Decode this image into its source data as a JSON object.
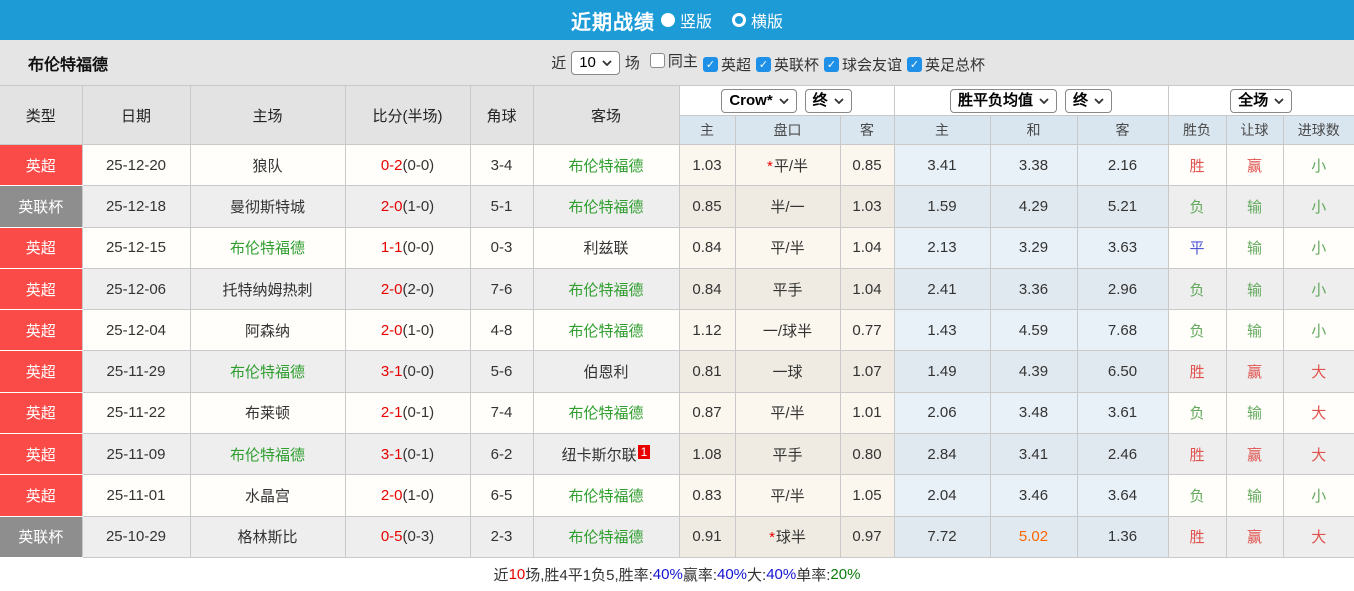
{
  "colors": {
    "accent_blue": "#1d9bd7",
    "checkbox_blue": "#1e90e8",
    "league_red": "#fb4b48",
    "league_gray": "#8e8e8e",
    "score_red": "#e80000",
    "team_green": "#2f9e2f",
    "win_red": "#e0524e",
    "lose_green": "#64a95e",
    "draw_blue": "#5156d6",
    "highlight_orange": "#ff6600"
  },
  "topbar": {
    "title": "近期战绩",
    "radios": [
      {
        "label": "竖版",
        "selected": true
      },
      {
        "label": "横版",
        "selected": false
      }
    ]
  },
  "filterbar": {
    "team": "布伦特福德",
    "near_label": "近",
    "matches_select": "10",
    "matches_label": "场",
    "checkboxes": [
      {
        "label": "同主",
        "checked": false
      },
      {
        "label": "英超",
        "checked": true
      },
      {
        "label": "英联杯",
        "checked": true
      },
      {
        "label": "球会友谊",
        "checked": true
      },
      {
        "label": "英足总杯",
        "checked": true
      }
    ]
  },
  "table": {
    "left_headers": [
      "类型",
      "日期",
      "主场",
      "比分(半场)",
      "角球",
      "客场"
    ],
    "group1": {
      "select1": "Crow*",
      "select2": "终",
      "cols": [
        "主",
        "盘口",
        "客"
      ]
    },
    "group2": {
      "select1": "胜平负均值",
      "select2": "终",
      "cols": [
        "主",
        "和",
        "客"
      ]
    },
    "group3": {
      "select": "全场",
      "cols": [
        "胜负",
        "让球",
        "进球数"
      ]
    },
    "rows": [
      {
        "league": "英超",
        "league_type": "red",
        "date": "25-12-20",
        "home": "狼队",
        "home_hl": false,
        "score": "0-2",
        "half": "(0-0)",
        "corners": "3-4",
        "away": "布伦特福德",
        "away_hl": true,
        "away_badge": "",
        "odds_home": "1.03",
        "handicap": "平/半",
        "handicap_star": true,
        "odds_away": "0.85",
        "avg_home": "3.41",
        "avg_draw": "3.38",
        "avg_away": "2.16",
        "avg_draw_hl": false,
        "res_wdl": "胜",
        "res_wdl_cls": "red",
        "res_handicap": "赢",
        "res_handicap_cls": "red",
        "res_goals": "小",
        "res_goals_cls": "green"
      },
      {
        "league": "英联杯",
        "league_type": "gray",
        "date": "25-12-18",
        "home": "曼彻斯特城",
        "home_hl": false,
        "score": "2-0",
        "half": "(1-0)",
        "corners": "5-1",
        "away": "布伦特福德",
        "away_hl": true,
        "away_badge": "",
        "odds_home": "0.85",
        "handicap": "半/一",
        "handicap_star": false,
        "odds_away": "1.03",
        "avg_home": "1.59",
        "avg_draw": "4.29",
        "avg_away": "5.21",
        "avg_draw_hl": false,
        "res_wdl": "负",
        "res_wdl_cls": "green",
        "res_handicap": "输",
        "res_handicap_cls": "green",
        "res_goals": "小",
        "res_goals_cls": "green"
      },
      {
        "league": "英超",
        "league_type": "red",
        "date": "25-12-15",
        "home": "布伦特福德",
        "home_hl": true,
        "score": "1-1",
        "half": "(0-0)",
        "corners": "0-3",
        "away": "利兹联",
        "away_hl": false,
        "away_badge": "",
        "odds_home": "0.84",
        "handicap": "平/半",
        "handicap_star": false,
        "odds_away": "1.04",
        "avg_home": "2.13",
        "avg_draw": "3.29",
        "avg_away": "3.63",
        "avg_draw_hl": false,
        "res_wdl": "平",
        "res_wdl_cls": "blue",
        "res_handicap": "输",
        "res_handicap_cls": "green",
        "res_goals": "小",
        "res_goals_cls": "green"
      },
      {
        "league": "英超",
        "league_type": "red",
        "date": "25-12-06",
        "home": "托特纳姆热刺",
        "home_hl": false,
        "score": "2-0",
        "half": "(2-0)",
        "corners": "7-6",
        "away": "布伦特福德",
        "away_hl": true,
        "away_badge": "",
        "odds_home": "0.84",
        "handicap": "平手",
        "handicap_star": false,
        "odds_away": "1.04",
        "avg_home": "2.41",
        "avg_draw": "3.36",
        "avg_away": "2.96",
        "avg_draw_hl": false,
        "res_wdl": "负",
        "res_wdl_cls": "green",
        "res_handicap": "输",
        "res_handicap_cls": "green",
        "res_goals": "小",
        "res_goals_cls": "green"
      },
      {
        "league": "英超",
        "league_type": "red",
        "date": "25-12-04",
        "home": "阿森纳",
        "home_hl": false,
        "score": "2-0",
        "half": "(1-0)",
        "corners": "4-8",
        "away": "布伦特福德",
        "away_hl": true,
        "away_badge": "",
        "odds_home": "1.12",
        "handicap": "一/球半",
        "handicap_star": false,
        "odds_away": "0.77",
        "avg_home": "1.43",
        "avg_draw": "4.59",
        "avg_away": "7.68",
        "avg_draw_hl": false,
        "res_wdl": "负",
        "res_wdl_cls": "green",
        "res_handicap": "输",
        "res_handicap_cls": "green",
        "res_goals": "小",
        "res_goals_cls": "green"
      },
      {
        "league": "英超",
        "league_type": "red",
        "date": "25-11-29",
        "home": "布伦特福德",
        "home_hl": true,
        "score": "3-1",
        "half": "(0-0)",
        "corners": "5-6",
        "away": "伯恩利",
        "away_hl": false,
        "away_badge": "",
        "odds_home": "0.81",
        "handicap": "一球",
        "handicap_star": false,
        "odds_away": "1.07",
        "avg_home": "1.49",
        "avg_draw": "4.39",
        "avg_away": "6.50",
        "avg_draw_hl": false,
        "res_wdl": "胜",
        "res_wdl_cls": "red",
        "res_handicap": "赢",
        "res_handicap_cls": "red",
        "res_goals": "大",
        "res_goals_cls": "red"
      },
      {
        "league": "英超",
        "league_type": "red",
        "date": "25-11-22",
        "home": "布莱顿",
        "home_hl": false,
        "score": "2-1",
        "half": "(0-1)",
        "corners": "7-4",
        "away": "布伦特福德",
        "away_hl": true,
        "away_badge": "",
        "odds_home": "0.87",
        "handicap": "平/半",
        "handicap_star": false,
        "odds_away": "1.01",
        "avg_home": "2.06",
        "avg_draw": "3.48",
        "avg_away": "3.61",
        "avg_draw_hl": false,
        "res_wdl": "负",
        "res_wdl_cls": "green",
        "res_handicap": "输",
        "res_handicap_cls": "green",
        "res_goals": "大",
        "res_goals_cls": "red"
      },
      {
        "league": "英超",
        "league_type": "red",
        "date": "25-11-09",
        "home": "布伦特福德",
        "home_hl": true,
        "score": "3-1",
        "half": "(0-1)",
        "corners": "6-2",
        "away": "纽卡斯尔联",
        "away_hl": false,
        "away_badge": "1",
        "odds_home": "1.08",
        "handicap": "平手",
        "handicap_star": false,
        "odds_away": "0.80",
        "avg_home": "2.84",
        "avg_draw": "3.41",
        "avg_away": "2.46",
        "avg_draw_hl": false,
        "res_wdl": "胜",
        "res_wdl_cls": "red",
        "res_handicap": "赢",
        "res_handicap_cls": "red",
        "res_goals": "大",
        "res_goals_cls": "red"
      },
      {
        "league": "英超",
        "league_type": "red",
        "date": "25-11-01",
        "home": "水晶宫",
        "home_hl": false,
        "score": "2-0",
        "half": "(1-0)",
        "corners": "6-5",
        "away": "布伦特福德",
        "away_hl": true,
        "away_badge": "",
        "odds_home": "0.83",
        "handicap": "平/半",
        "handicap_star": false,
        "odds_away": "1.05",
        "avg_home": "2.04",
        "avg_draw": "3.46",
        "avg_away": "3.64",
        "avg_draw_hl": false,
        "res_wdl": "负",
        "res_wdl_cls": "green",
        "res_handicap": "输",
        "res_handicap_cls": "green",
        "res_goals": "小",
        "res_goals_cls": "green"
      },
      {
        "league": "英联杯",
        "league_type": "gray",
        "date": "25-10-29",
        "home": "格林斯比",
        "home_hl": false,
        "score": "0-5",
        "half": "(0-3)",
        "corners": "2-3",
        "away": "布伦特福德",
        "away_hl": true,
        "away_badge": "",
        "odds_home": "0.91",
        "handicap": "球半",
        "handicap_star": true,
        "odds_away": "0.97",
        "avg_home": "7.72",
        "avg_draw": "5.02",
        "avg_away": "1.36",
        "avg_draw_hl": true,
        "res_wdl": "胜",
        "res_wdl_cls": "red",
        "res_handicap": "赢",
        "res_handicap_cls": "red",
        "res_goals": "大",
        "res_goals_cls": "red"
      }
    ]
  },
  "footer": {
    "parts": [
      {
        "t": "近",
        "c": "dark"
      },
      {
        "t": "10",
        "c": "red"
      },
      {
        "t": "场,胜4平1负5, ",
        "c": "dark"
      },
      {
        "t": "胜率:",
        "c": "dark"
      },
      {
        "t": "40%",
        "c": "blue"
      },
      {
        "t": " 赢率:",
        "c": "dark"
      },
      {
        "t": "40%",
        "c": "blue"
      },
      {
        "t": " 大:",
        "c": "dark"
      },
      {
        "t": "40%",
        "c": "blue"
      },
      {
        "t": " 单率:",
        "c": "dark"
      },
      {
        "t": "20%",
        "c": "green"
      }
    ]
  }
}
